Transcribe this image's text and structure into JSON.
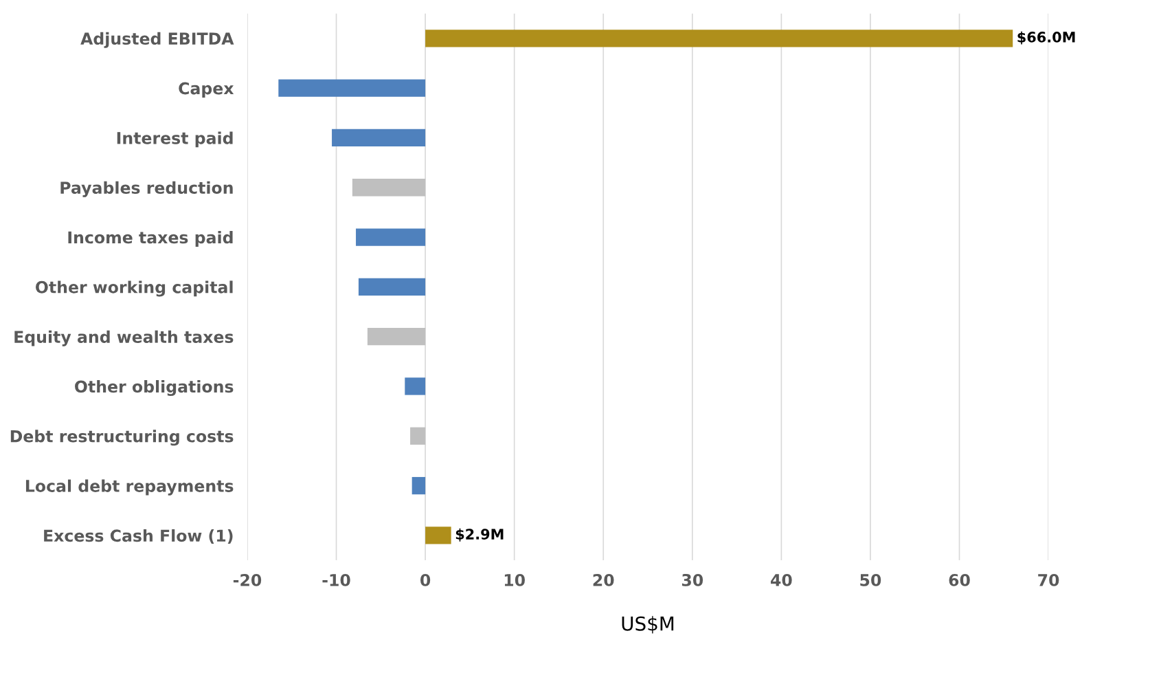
{
  "chart_data": {
    "type": "bar",
    "orientation": "horizontal",
    "xlabel": "US$M",
    "categories": [
      "Adjusted EBITDA",
      "Capex",
      "Interest paid",
      "Payables reduction",
      "Income taxes paid",
      "Other working capital",
      "Equity and wealth taxes",
      "Other obligations",
      "Debt restructuring costs",
      "Local debt repayments",
      "Excess Cash Flow (1)"
    ],
    "values": [
      66.0,
      -16.5,
      -10.5,
      -8.2,
      -7.8,
      -7.5,
      -6.5,
      -2.3,
      -1.7,
      -1.5,
      2.9
    ],
    "colors": [
      "#af8f1b",
      "#4f81bd",
      "#4f81bd",
      "#bfbfbf",
      "#4f81bd",
      "#4f81bd",
      "#bfbfbf",
      "#4f81bd",
      "#bfbfbf",
      "#4f81bd",
      "#af8f1b"
    ],
    "value_labels": [
      "$66.0M",
      null,
      null,
      null,
      null,
      null,
      null,
      null,
      null,
      null,
      "$2.9M"
    ],
    "xlim": [
      -20,
      70
    ],
    "xticks": [
      -20,
      -10,
      0,
      10,
      20,
      30,
      40,
      50,
      60,
      70
    ],
    "grid": "x",
    "legend": false
  }
}
